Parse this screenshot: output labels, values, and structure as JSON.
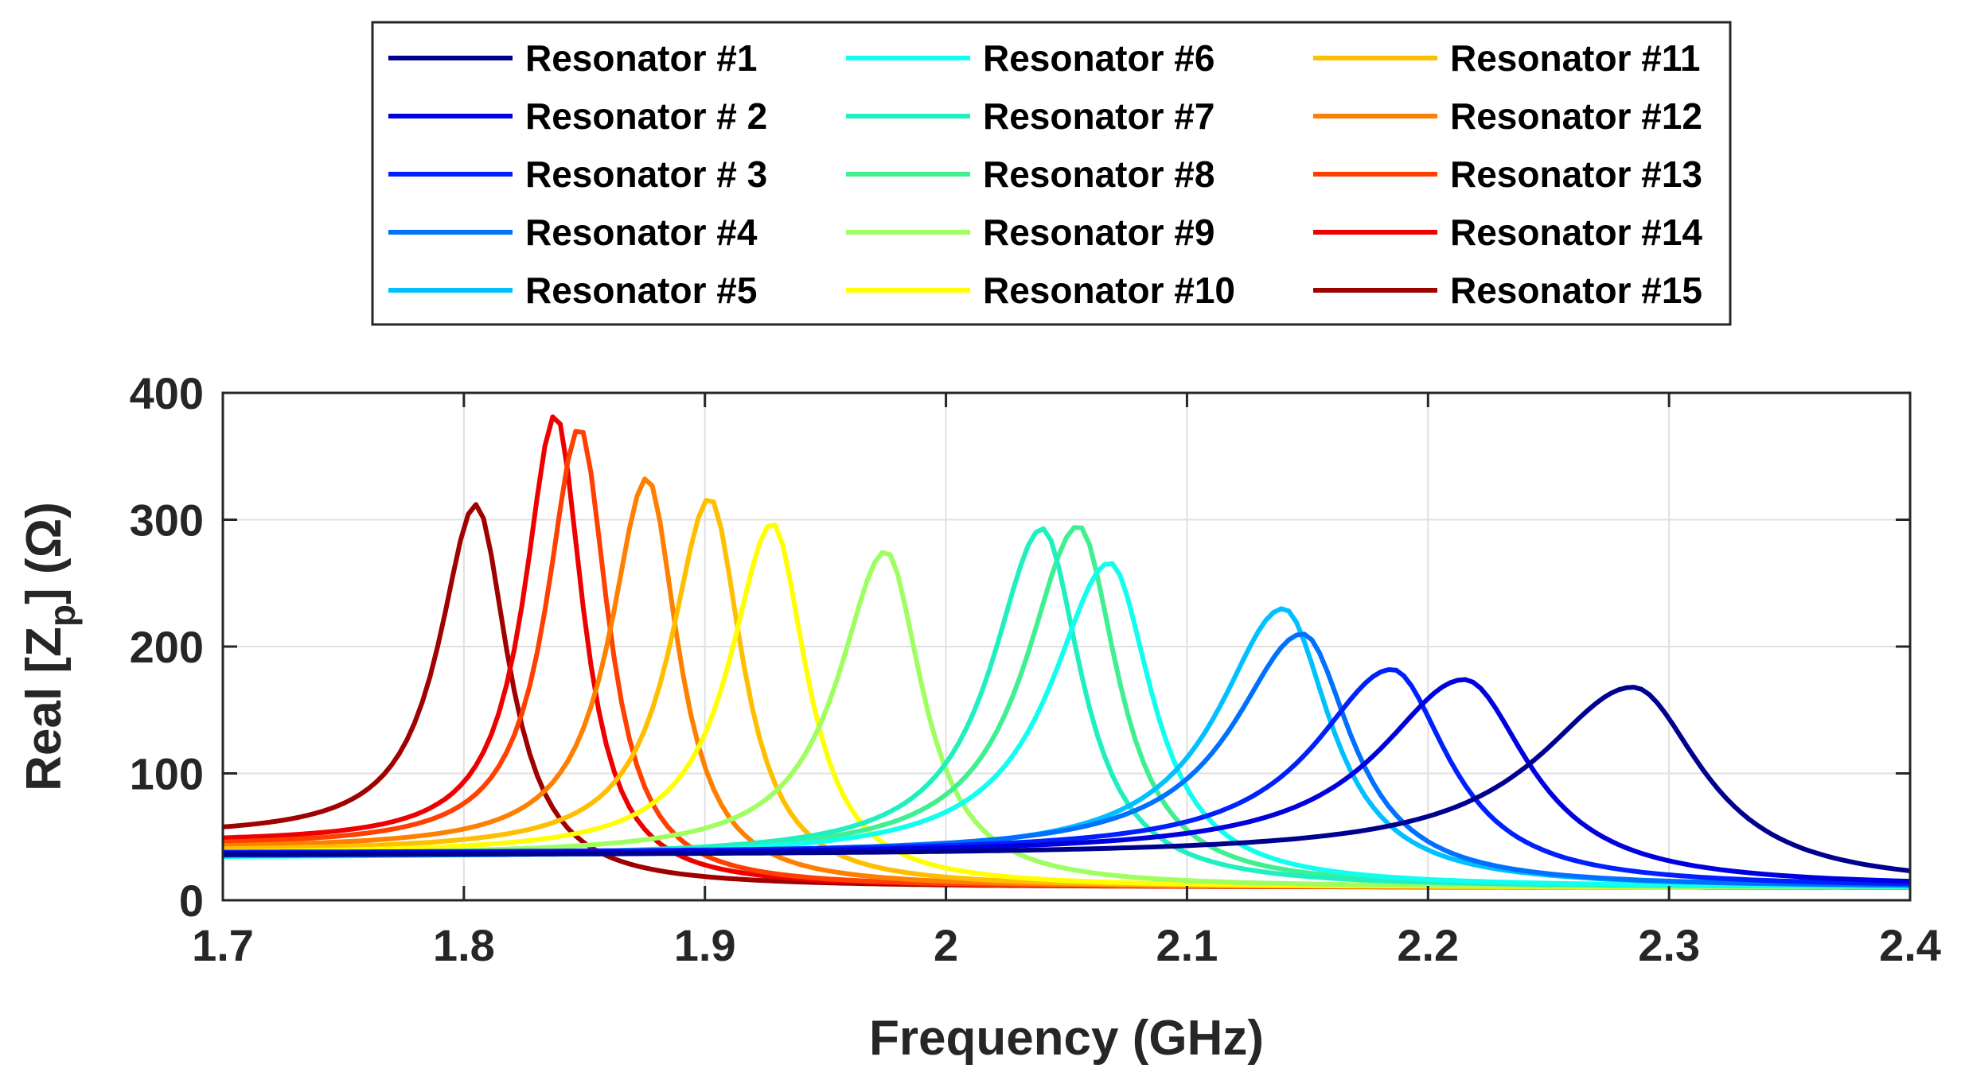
{
  "chart_data": {
    "type": "line",
    "title": "",
    "xlabel": "Frequency (GHz)",
    "ylabel_main": "Real [Z",
    "ylabel_sub": "p",
    "ylabel_tail": "] (Ω)",
    "xlim": [
      1.7,
      2.4
    ],
    "ylim": [
      0,
      400
    ],
    "x_ticks": [
      1.7,
      1.8,
      1.9,
      2.0,
      2.1,
      2.2,
      2.3,
      2.4
    ],
    "x_tick_labels": [
      "1.7",
      "1.8",
      "1.9",
      "2",
      "2.1",
      "2.2",
      "2.3",
      "2.4"
    ],
    "y_ticks": [
      0,
      100,
      200,
      300,
      400
    ],
    "y_tick_labels": [
      "0",
      "100",
      "200",
      "300",
      "400"
    ],
    "grid": true,
    "legend_position": "top-center",
    "series": [
      {
        "name": "Resonator #1",
        "color": "#00008f",
        "f0": 2.285,
        "peak": 168,
        "left_w": 0.115,
        "right_w": 0.085,
        "base": 35
      },
      {
        "name": "Resonator # 2",
        "color": "#0000df",
        "f0": 2.215,
        "peak": 174,
        "left_w": 0.105,
        "right_w": 0.08,
        "base": 36
      },
      {
        "name": "Resonator # 3",
        "color": "#0020ff",
        "f0": 2.185,
        "peak": 182,
        "left_w": 0.095,
        "right_w": 0.07,
        "base": 37
      },
      {
        "name": "Resonator #4",
        "color": "#0070ff",
        "f0": 2.148,
        "peak": 210,
        "left_w": 0.085,
        "right_w": 0.06,
        "base": 36
      },
      {
        "name": "Resonator #5",
        "color": "#00c0ff",
        "f0": 2.14,
        "peak": 230,
        "left_w": 0.08,
        "right_w": 0.058,
        "base": 34
      },
      {
        "name": "Resonator #6",
        "color": "#10ffef",
        "f0": 2.068,
        "peak": 266,
        "left_w": 0.072,
        "right_w": 0.052,
        "base": 33
      },
      {
        "name": "Resonator #7",
        "color": "#20f0c0",
        "f0": 2.04,
        "peak": 293,
        "left_w": 0.062,
        "right_w": 0.048,
        "base": 34
      },
      {
        "name": "Resonator #8",
        "color": "#40f090",
        "f0": 2.055,
        "peak": 295,
        "left_w": 0.065,
        "right_w": 0.048,
        "base": 34
      },
      {
        "name": "Resonator #9",
        "color": "#9fff60",
        "f0": 1.975,
        "peak": 275,
        "left_w": 0.058,
        "right_w": 0.045,
        "base": 35
      },
      {
        "name": "Resonator #10",
        "color": "#ffff00",
        "f0": 1.928,
        "peak": 297,
        "left_w": 0.052,
        "right_w": 0.042,
        "base": 36
      },
      {
        "name": "Resonator #11",
        "color": "#ffbf00",
        "f0": 1.902,
        "peak": 317,
        "left_w": 0.048,
        "right_w": 0.04,
        "base": 38
      },
      {
        "name": "Resonator #12",
        "color": "#ff8000",
        "f0": 1.876,
        "peak": 333,
        "left_w": 0.045,
        "right_w": 0.038,
        "base": 40
      },
      {
        "name": "Resonator #13",
        "color": "#ff4000",
        "f0": 1.848,
        "peak": 373,
        "left_w": 0.04,
        "right_w": 0.035,
        "base": 42
      },
      {
        "name": "Resonator #14",
        "color": "#ef0000",
        "f0": 1.838,
        "peak": 383,
        "left_w": 0.038,
        "right_w": 0.034,
        "base": 45
      },
      {
        "name": "Resonator #15",
        "color": "#9f0000",
        "f0": 1.805,
        "peak": 312,
        "left_w": 0.045,
        "right_w": 0.04,
        "base": 50
      }
    ]
  }
}
